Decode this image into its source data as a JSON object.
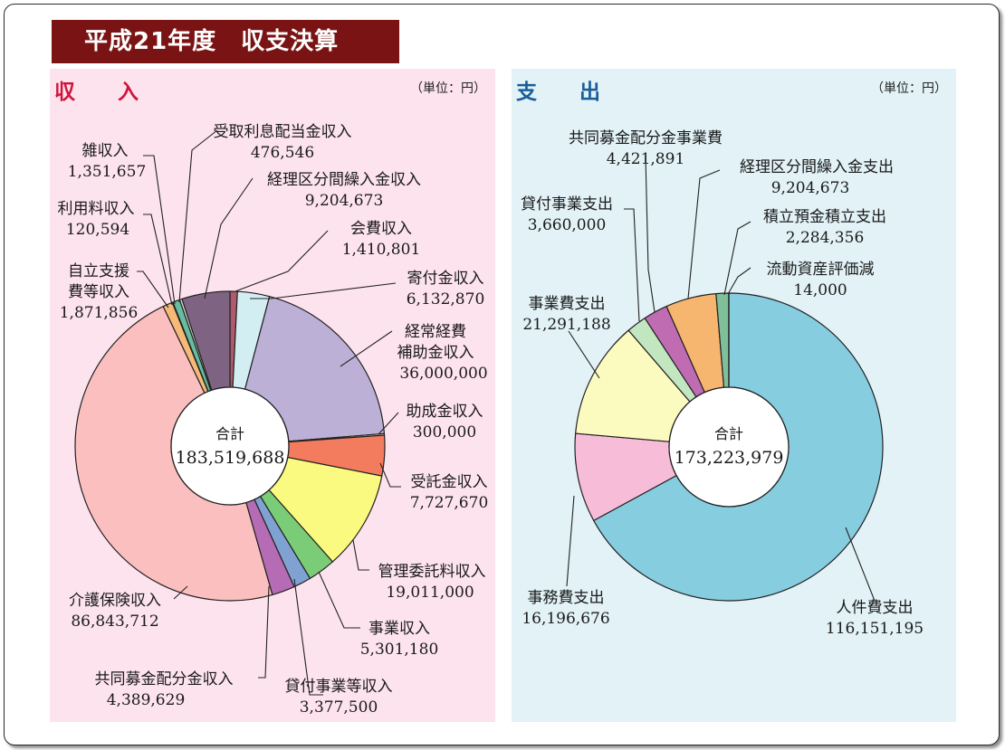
{
  "title": "平成21年度　収支決算",
  "income": {
    "heading": "収　入",
    "unit": "（単位：円）",
    "total_label": "合計",
    "total_value": "183,519,688"
  },
  "expense": {
    "heading": "支　出",
    "unit": "（単位：円）",
    "total_label": "合計",
    "total_value": "173,223,979"
  },
  "chart_data": [
    {
      "type": "pie",
      "title": "収入",
      "unit": "円",
      "total": 183519688,
      "slices": [
        {
          "label": "会費収入",
          "value": 1410801,
          "color": "#b05a6e"
        },
        {
          "label": "寄付金収入",
          "value": 6132870,
          "color": "#d2eef2"
        },
        {
          "label": "経常経費補助金収入",
          "value": 36000000,
          "color": "#bdb0d7"
        },
        {
          "label": "助成金収入",
          "value": 300000,
          "color": "#f3e3c8"
        },
        {
          "label": "受託金収入",
          "value": 7727670,
          "color": "#f47c5e"
        },
        {
          "label": "管理委託料収入",
          "value": 19011000,
          "color": "#fafa80"
        },
        {
          "label": "事業収入",
          "value": 5301180,
          "color": "#7bcc77"
        },
        {
          "label": "貸付事業等収入",
          "value": 3377500,
          "color": "#7fa2d3"
        },
        {
          "label": "共同募金配分金収入",
          "value": 4389629,
          "color": "#b66cb4"
        },
        {
          "label": "介護保険収入",
          "value": 86843712,
          "color": "#fbbfbf"
        },
        {
          "label": "自立支援費等収入",
          "value": 1871856,
          "color": "#f6b978"
        },
        {
          "label": "利用料収入",
          "value": 120594,
          "color": "#f5e6d6"
        },
        {
          "label": "雑収入",
          "value": 1351657,
          "color": "#66bda0"
        },
        {
          "label": "受取利息配当金収入",
          "value": 476546,
          "color": "#d8d8d8"
        },
        {
          "label": "経理区分間繰入金収入",
          "value": 9204673,
          "color": "#7e6482"
        }
      ]
    },
    {
      "type": "pie",
      "title": "支出",
      "unit": "円",
      "total": 173223979,
      "slices": [
        {
          "label": "人件費支出",
          "value": 116151195,
          "color": "#86cde0"
        },
        {
          "label": "事務費支出",
          "value": 16196676,
          "color": "#f7bcd8"
        },
        {
          "label": "事業費支出",
          "value": 21291188,
          "color": "#fbfbc0"
        },
        {
          "label": "貸付事業支出",
          "value": 3660000,
          "color": "#c2e6c0"
        },
        {
          "label": "共同募金配分金事業費",
          "value": 4421891,
          "color": "#c06cb3"
        },
        {
          "label": "経理区分間繰入金支出",
          "value": 9204673,
          "color": "#f7b670"
        },
        {
          "label": "積立預金積立支出",
          "value": 2284356,
          "color": "#7fc09a"
        },
        {
          "label": "流動資産評価減",
          "value": 14000,
          "color": "#d06060"
        }
      ]
    }
  ],
  "income_labels": [
    {
      "name": "受取利息配当金収入",
      "value": "476,546"
    },
    {
      "name": "経理区分間繰入金収入",
      "value": "9,204,673"
    },
    {
      "name": "会費収入",
      "value": "1,410,801"
    },
    {
      "name": "寄付金収入",
      "value": "6,132,870"
    },
    {
      "name1": "経常経費",
      "name2": "補助金収入",
      "value": "36,000,000"
    },
    {
      "name": "助成金収入",
      "value": "300,000"
    },
    {
      "name": "受託金収入",
      "value": "7,727,670"
    },
    {
      "name": "管理委託料収入",
      "value": "19,011,000"
    },
    {
      "name": "事業収入",
      "value": "5,301,180"
    },
    {
      "name": "貸付事業等収入",
      "value": "3,377,500"
    },
    {
      "name": "共同募金配分金収入",
      "value": "4,389,629"
    },
    {
      "name": "介護保険収入",
      "value": "86,843,712"
    },
    {
      "name1": "自立支援",
      "name2": "費等収入",
      "value": "1,871,856"
    },
    {
      "name": "利用料収入",
      "value": "120,594"
    },
    {
      "name": "雑収入",
      "value": "1,351,657"
    }
  ],
  "expense_labels": [
    {
      "name": "共同募金配分金事業費",
      "value": "4,421,891"
    },
    {
      "name": "経理区分間繰入金支出",
      "value": "9,204,673"
    },
    {
      "name": "貸付事業支出",
      "value": "3,660,000"
    },
    {
      "name": "積立預金積立支出",
      "value": "2,284,356"
    },
    {
      "name": "流動資産評価減",
      "value": "14,000"
    },
    {
      "name": "事業費支出",
      "value": "21,291,188"
    },
    {
      "name": "事務費支出",
      "value": "16,196,676"
    },
    {
      "name": "人件費支出",
      "value": "116,151,195"
    }
  ]
}
